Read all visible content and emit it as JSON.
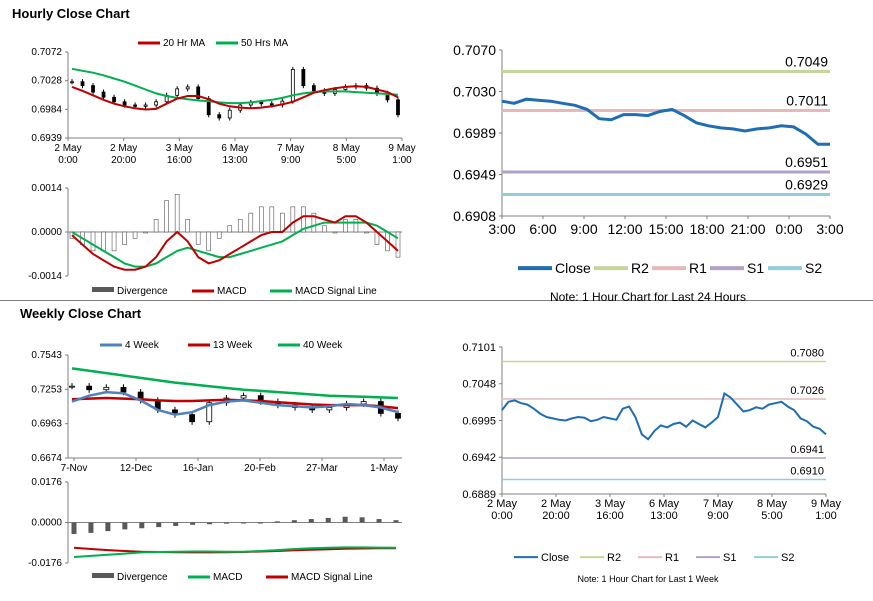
{
  "sections": {
    "hourly_title": "Hourly Close Chart",
    "weekly_title": "Weekly Close Chart"
  },
  "colors": {
    "ma20": "#c00000",
    "ma50": "#00b050",
    "close": "#1f6eb4",
    "r2": "#c4d79b",
    "r1": "#e6b9b8",
    "s1": "#b1a0c7",
    "s2": "#92cddc",
    "divergence": "#595959",
    "macd_red": "#c00000",
    "signal_green": "#00b050",
    "week4": "#4f81bd"
  },
  "chart_data": [
    {
      "id": "hourly_candles",
      "type": "candlestick",
      "legend": [
        "20 Hr MA",
        "50 Hrs MA"
      ],
      "ylim": [
        0.6939,
        0.7072
      ],
      "yticks": [
        "0.7072",
        "0.7028",
        "0.6984",
        "0.6939"
      ],
      "xticks": [
        [
          "2 May",
          "0:00"
        ],
        [
          "2 May",
          "20:00"
        ],
        [
          "3 May",
          "16:00"
        ],
        [
          "6 May",
          "13:00"
        ],
        [
          "7 May",
          "9:00"
        ],
        [
          "8 May",
          "5:00"
        ],
        [
          "9 May",
          "1:00"
        ]
      ],
      "ma20": [
        0.7018,
        0.7012,
        0.7005,
        0.6998,
        0.6992,
        0.6988,
        0.6985,
        0.6983,
        0.6984,
        0.6992,
        0.7,
        0.7004,
        0.7004,
        0.6999,
        0.6992,
        0.6988,
        0.6986,
        0.6985,
        0.6986,
        0.6988,
        0.6991,
        0.6995,
        0.7002,
        0.7009,
        0.7013,
        0.7016,
        0.7018,
        0.7019,
        0.7018,
        0.7014,
        0.701,
        0.7002
      ],
      "ma50": [
        0.7046,
        0.7043,
        0.704,
        0.7036,
        0.7031,
        0.7026,
        0.702,
        0.7014,
        0.7008,
        0.7004,
        0.7001,
        0.6999,
        0.6997,
        0.6996,
        0.6994,
        0.6993,
        0.6993,
        0.6994,
        0.6996,
        0.6998,
        0.7001,
        0.7005,
        0.7008,
        0.701,
        0.7011,
        0.7011,
        0.7011,
        0.701,
        0.7009,
        0.7008,
        0.7007,
        0.7006
      ],
      "close": [
        0.7026,
        0.702,
        0.701,
        0.7002,
        0.6995,
        0.699,
        0.6988,
        0.699,
        0.6995,
        0.7005,
        0.7015,
        0.7018,
        0.7,
        0.6975,
        0.697,
        0.6982,
        0.699,
        0.6994,
        0.6992,
        0.699,
        0.6996,
        0.7045,
        0.702,
        0.7012,
        0.7008,
        0.7014,
        0.7018,
        0.702,
        0.7016,
        0.7008,
        0.6998,
        0.6975
      ]
    },
    {
      "id": "hourly_macd",
      "type": "macd",
      "ylim": [
        -0.0014,
        0.0014
      ],
      "yticks": [
        "0.0014",
        "0.0000",
        "-0.0014"
      ],
      "legend": [
        "Divergence",
        "MACD",
        "MACD Signal Line"
      ],
      "macd": [
        -0.0001,
        -0.0004,
        -0.0007,
        -0.0009,
        -0.0011,
        -0.0012,
        -0.0012,
        -0.0011,
        -0.0008,
        -0.0003,
        0.0,
        -0.0003,
        -0.0008,
        -0.001,
        -0.0009,
        -0.0007,
        -0.0005,
        -0.0003,
        -0.0001,
        0.0,
        0.0,
        0.0003,
        0.0005,
        0.0005,
        0.0004,
        0.0003,
        0.0005,
        0.0005,
        0.0003,
        0.0,
        -0.0003,
        -0.0006
      ],
      "signal": [
        0.0,
        -0.0002,
        -0.0004,
        -0.0006,
        -0.0008,
        -0.001,
        -0.0011,
        -0.0011,
        -0.001,
        -0.0008,
        -0.0006,
        -0.0005,
        -0.0006,
        -0.0007,
        -0.0008,
        -0.0008,
        -0.0007,
        -0.0006,
        -0.0005,
        -0.0004,
        -0.0003,
        -0.0001,
        0.0001,
        0.0002,
        0.0003,
        0.0003,
        0.0003,
        0.0003,
        0.0003,
        0.0002,
        0.0,
        -0.0002
      ]
    },
    {
      "id": "hourly_levels",
      "type": "line",
      "ylim": [
        0.6908,
        0.707
      ],
      "yticks": [
        "0.7070",
        "0.7030",
        "0.6989",
        "0.6949",
        "0.6908"
      ],
      "xticks": [
        "3:00",
        "6:00",
        "9:00",
        "12:00",
        "15:00",
        "18:00",
        "21:00",
        "0:00",
        "3:00"
      ],
      "legend": [
        "Close",
        "R2",
        "R1",
        "S1",
        "S2"
      ],
      "levels": {
        "R2": 0.7049,
        "R1": 0.7011,
        "S1": 0.6951,
        "S2": 0.6929
      },
      "level_labels": {
        "R2": "0.7049",
        "R1": "0.7011",
        "S1": "0.6951",
        "S2": "0.6929"
      },
      "close": [
        0.702,
        0.7018,
        0.7022,
        0.7021,
        0.702,
        0.7018,
        0.7016,
        0.7012,
        0.7003,
        0.7002,
        0.7007,
        0.7007,
        0.7006,
        0.701,
        0.7012,
        0.7006,
        0.6999,
        0.6996,
        0.6994,
        0.6993,
        0.6991,
        0.6993,
        0.6994,
        0.6996,
        0.6995,
        0.6988,
        0.6978,
        0.6978
      ],
      "note": "Note: 1 Hour Chart for Last 24 Hours"
    },
    {
      "id": "weekly_candles",
      "type": "candlestick",
      "legend": [
        "4 Week",
        "13 Week",
        "40 Week"
      ],
      "ylim": [
        0.6674,
        0.7543
      ],
      "yticks": [
        "0.7543",
        "0.7253",
        "0.6963",
        "0.6674"
      ],
      "xticks": [
        "7-Nov",
        "12-Dec",
        "16-Jan",
        "20-Feb",
        "27-Mar",
        "1-May"
      ],
      "week4": [
        0.715,
        0.72,
        0.723,
        0.722,
        0.716,
        0.708,
        0.704,
        0.706,
        0.712,
        0.715,
        0.716,
        0.714,
        0.712,
        0.711,
        0.71,
        0.711,
        0.713,
        0.712,
        0.71,
        0.706
      ],
      "week13": [
        0.717,
        0.7175,
        0.718,
        0.7175,
        0.717,
        0.716,
        0.7155,
        0.7155,
        0.716,
        0.7165,
        0.716,
        0.7155,
        0.7145,
        0.7135,
        0.7125,
        0.712,
        0.712,
        0.712,
        0.711,
        0.7095
      ],
      "week40": [
        0.743,
        0.741,
        0.739,
        0.737,
        0.735,
        0.733,
        0.731,
        0.7295,
        0.728,
        0.7265,
        0.725,
        0.724,
        0.723,
        0.722,
        0.721,
        0.72,
        0.7195,
        0.719,
        0.7185,
        0.718
      ],
      "close": [
        0.728,
        0.725,
        0.727,
        0.723,
        0.716,
        0.708,
        0.704,
        0.698,
        0.714,
        0.718,
        0.72,
        0.715,
        0.712,
        0.71,
        0.708,
        0.71,
        0.713,
        0.715,
        0.705,
        0.701
      ]
    },
    {
      "id": "weekly_macd",
      "type": "macd",
      "ylim": [
        -0.0176,
        0.0176
      ],
      "yticks": [
        "0.0176",
        "0.0000",
        "-0.0176"
      ],
      "legend": [
        "Divergence",
        "MACD",
        "MACD Signal Line"
      ],
      "divergence": [
        -0.002,
        -0.0018,
        -0.0015,
        -0.0012,
        -0.001,
        -0.0008,
        -0.0006,
        -0.0004,
        -0.0003,
        -0.0002,
        -0.0001,
        0.0,
        0.0002,
        0.0004,
        0.0006,
        0.0008,
        0.001,
        0.0009,
        0.0006,
        0.0004
      ],
      "macd": [
        -0.015,
        -0.0145,
        -0.014,
        -0.0135,
        -0.013,
        -0.0128,
        -0.0127,
        -0.0126,
        -0.0126,
        -0.0127,
        -0.0127,
        -0.0124,
        -0.012,
        -0.0115,
        -0.0112,
        -0.011,
        -0.0108,
        -0.0108,
        -0.0109,
        -0.011
      ],
      "signal": [
        -0.011,
        -0.0115,
        -0.012,
        -0.0124,
        -0.0127,
        -0.0128,
        -0.0129,
        -0.013,
        -0.013,
        -0.0129,
        -0.0128,
        -0.0126,
        -0.0124,
        -0.0121,
        -0.0118,
        -0.0116,
        -0.0114,
        -0.0113,
        -0.0112,
        -0.0112
      ]
    },
    {
      "id": "weekly_levels",
      "type": "line",
      "ylim": [
        0.6889,
        0.7101
      ],
      "yticks": [
        "0.7101",
        "0.7048",
        "0.6995",
        "0.6942",
        "0.6889"
      ],
      "xticks": [
        [
          "2 May",
          "0:00"
        ],
        [
          "2 May",
          "20:00"
        ],
        [
          "3 May",
          "16:00"
        ],
        [
          "6 May",
          "13:00"
        ],
        [
          "7 May",
          "9:00"
        ],
        [
          "8 May",
          "5:00"
        ],
        [
          "9 May",
          "1:00"
        ]
      ],
      "legend": [
        "Close",
        "R2",
        "R1",
        "S1",
        "S2"
      ],
      "levels": {
        "R2": 0.708,
        "R1": 0.7026,
        "S1": 0.6941,
        "S2": 0.691
      },
      "level_labels": {
        "R2": "0.7080",
        "R1": "0.7026",
        "S1": "0.6941",
        "S2": "0.6910"
      },
      "close": [
        0.701,
        0.7022,
        0.7024,
        0.702,
        0.7018,
        0.7012,
        0.7005,
        0.7,
        0.6998,
        0.6996,
        0.6995,
        0.6998,
        0.7,
        0.6999,
        0.6994,
        0.6996,
        0.7,
        0.6998,
        0.6996,
        0.7012,
        0.7015,
        0.7,
        0.6975,
        0.6968,
        0.698,
        0.6988,
        0.6985,
        0.699,
        0.6992,
        0.6986,
        0.6995,
        0.699,
        0.6985,
        0.6992,
        0.7,
        0.7034,
        0.7028,
        0.7018,
        0.7008,
        0.701,
        0.7014,
        0.7012,
        0.7018,
        0.702,
        0.7022,
        0.7015,
        0.701,
        0.6998,
        0.6994,
        0.6986,
        0.6983,
        0.6975
      ],
      "note": "Note: 1 Hour Chart for Last 1 Week"
    }
  ]
}
